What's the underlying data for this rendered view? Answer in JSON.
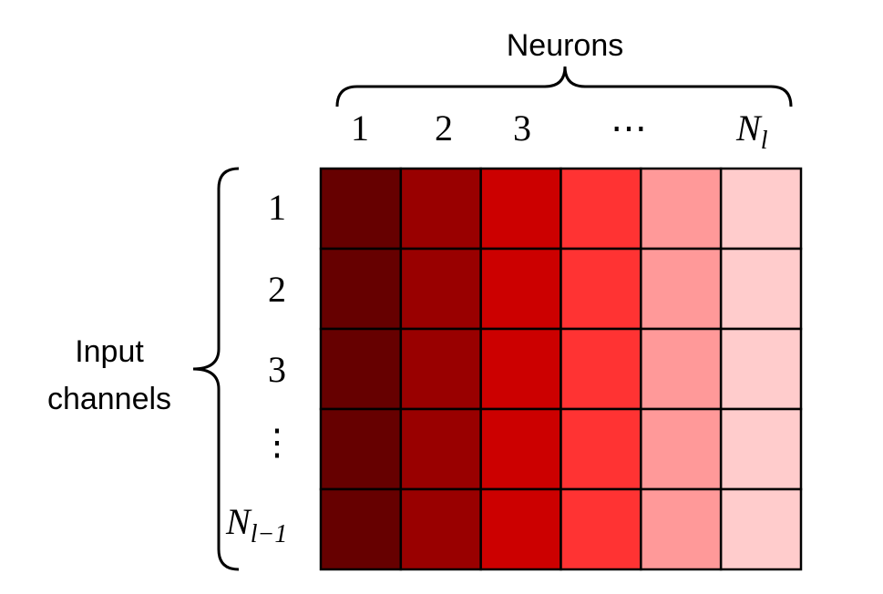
{
  "top_label": "Neurons",
  "side_label": {
    "line1": "Input",
    "line2": "channels"
  },
  "column_labels": [
    "1",
    "2",
    "3",
    "⋯"
  ],
  "last_column_label": {
    "base": "N",
    "sub": "l"
  },
  "row_labels": [
    "1",
    "2",
    "3",
    "⋮"
  ],
  "last_row_label": {
    "base": "N",
    "sub": "l−1"
  }
}
